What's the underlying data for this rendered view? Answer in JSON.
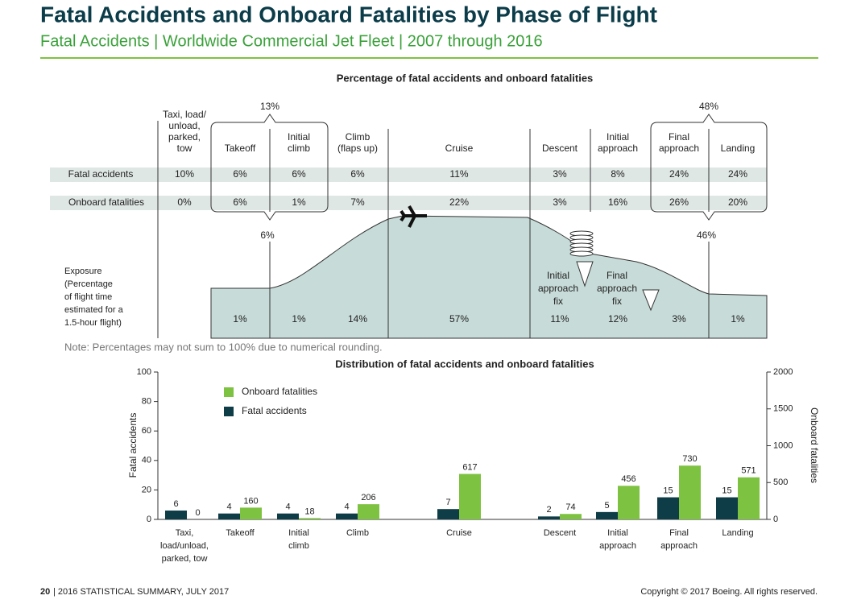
{
  "header": {
    "title": "Fatal Accidents and Onboard Fatalities by Phase of Flight",
    "subtitle": "Fatal Accidents | Worldwide Commercial Jet Fleet | 2007 through 2016"
  },
  "phase_table": {
    "title": "Percentage of fatal accidents and onboard fatalities",
    "phases": [
      [
        "Taxi, load/",
        "unload,",
        "parked,",
        "tow"
      ],
      [
        "Takeoff"
      ],
      [
        "Initial",
        "climb"
      ],
      [
        "Climb",
        "(flaps up)"
      ],
      [
        "Cruise"
      ],
      [
        "Descent"
      ],
      [
        "Initial",
        "approach"
      ],
      [
        "Final",
        "approach"
      ],
      [
        "Landing"
      ]
    ],
    "rows": [
      {
        "name": "Fatal accidents",
        "values": [
          "10%",
          "6%",
          "6%",
          "6%",
          "11%",
          "3%",
          "8%",
          "24%",
          "24%"
        ]
      },
      {
        "name": "Onboard fatalities",
        "values": [
          "0%",
          "6%",
          "1%",
          "7%",
          "22%",
          "3%",
          "16%",
          "26%",
          "20%"
        ]
      }
    ],
    "groups": [
      {
        "top": "13%",
        "bottom": "6%"
      },
      {
        "top": "48%",
        "bottom": "46%"
      }
    ],
    "exposure": {
      "label": [
        "Exposure",
        "(Percentage",
        "of flight time",
        "estimated for a",
        "1.5-hour flight)"
      ],
      "values": [
        null,
        "1%",
        "1%",
        "14%",
        "57%",
        "11%",
        "12%",
        "3%",
        "1%"
      ]
    },
    "fixes": [
      [
        "Initial",
        "approach",
        "fix"
      ],
      [
        "Final",
        "approach",
        "fix"
      ]
    ],
    "note": "Note: Percentages may not sum to 100% due to numerical rounding."
  },
  "chart_data": {
    "type": "bar",
    "title": "Distribution of fatal accidents and onboard fatalities",
    "categories": [
      [
        "Taxi,",
        "load/unload,",
        "parked, tow"
      ],
      [
        "Takeoff"
      ],
      [
        "Initial",
        "climb"
      ],
      [
        "Climb"
      ],
      [
        "Cruise"
      ],
      [
        "Descent"
      ],
      [
        "Initial",
        "approach"
      ],
      [
        "Final",
        "approach"
      ],
      [
        "Landing"
      ]
    ],
    "series": [
      {
        "name": "Fatal accidents",
        "color": "#0e3d47",
        "values": [
          6,
          4,
          4,
          4,
          7,
          2,
          5,
          15,
          15
        ]
      },
      {
        "name": "Onboard fatalities",
        "color": "#7ec242",
        "axis": "y2",
        "values": [
          0,
          160,
          18,
          206,
          617,
          74,
          456,
          730,
          571
        ]
      }
    ],
    "ylabel": "Fatal accidents",
    "y2label": "Onboard fatalities",
    "ylim": [
      0,
      100
    ],
    "yticks": [
      0,
      20,
      40,
      60,
      80,
      100
    ],
    "y2lim": [
      0,
      2000
    ],
    "y2ticks": [
      0,
      500,
      1000,
      1500,
      2000
    ]
  },
  "footer": {
    "page": "20",
    "left": "| 2016 STATISTICAL SUMMARY, JULY 2017",
    "right": "Copyright © 2017 Boeing. All rights reserved."
  }
}
